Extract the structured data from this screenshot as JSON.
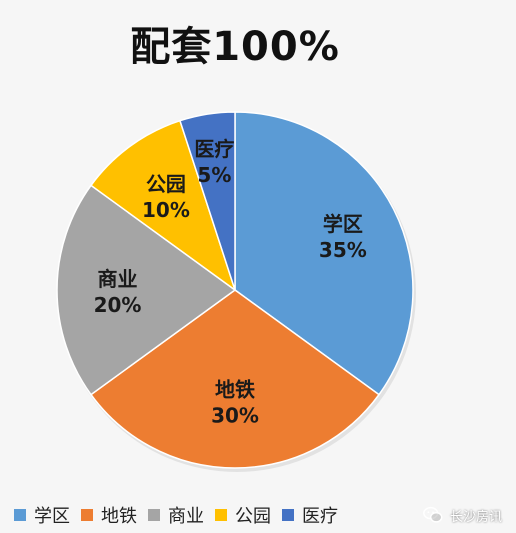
{
  "chart_data": {
    "type": "pie",
    "title": "配套100%",
    "categories": [
      "学区",
      "地铁",
      "商业",
      "公园",
      "医疗"
    ],
    "values": [
      35,
      30,
      20,
      10,
      5
    ],
    "labels": [
      "35%",
      "30%",
      "20%",
      "10%",
      "5%"
    ],
    "colors": [
      "#5b9bd5",
      "#ed7d31",
      "#a5a5a5",
      "#ffc000",
      "#4472c4"
    ],
    "legend_position": "bottom"
  },
  "watermark": {
    "text": "长沙房讯",
    "icon": "wechat-icon"
  }
}
